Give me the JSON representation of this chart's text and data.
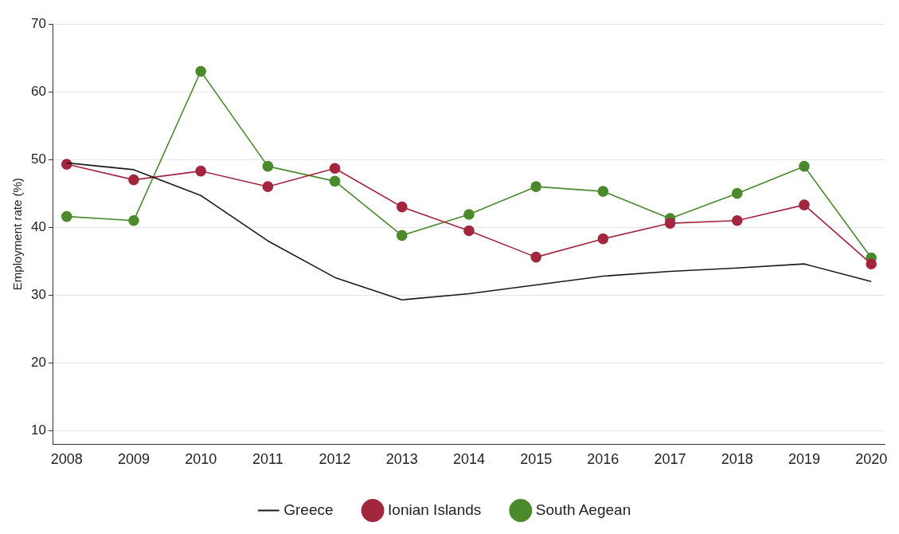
{
  "chart_data": {
    "type": "line",
    "ylabel": "Employment rate (%)",
    "x": [
      2008,
      2009,
      2010,
      2011,
      2012,
      2013,
      2014,
      2015,
      2016,
      2017,
      2018,
      2019,
      2020
    ],
    "xlim": [
      2007.8,
      2020.2
    ],
    "xticks": [
      2008,
      2009,
      2010,
      2011,
      2012,
      2013,
      2014,
      2015,
      2016,
      2017,
      2018,
      2019,
      2020
    ],
    "ylim": [
      8,
      70
    ],
    "yticks": [
      10,
      20,
      30,
      40,
      50,
      60,
      70
    ],
    "grid": "y",
    "legend": "bottom",
    "series": [
      {
        "name": "Greece",
        "color": "#1a1a1a",
        "marker": "none",
        "values": [
          49.5,
          48.5,
          44.7,
          38,
          32.6,
          29.3,
          30.2,
          31.5,
          32.8,
          33.5,
          34,
          34.6,
          32
        ]
      },
      {
        "name": "Ionian Islands",
        "color": "#a3263f",
        "marker": "circle",
        "values": [
          49.3,
          47,
          48.3,
          46,
          48.7,
          43,
          39.5,
          35.6,
          38.3,
          40.6,
          41,
          43.3,
          34.6
        ]
      },
      {
        "name": "South Aegean",
        "color": "#4b8a2c",
        "marker": "circle",
        "values": [
          41.6,
          41,
          63,
          49,
          46.8,
          38.8,
          41.9,
          46,
          45.3,
          41.3,
          45,
          49,
          35.5
        ]
      }
    ]
  }
}
